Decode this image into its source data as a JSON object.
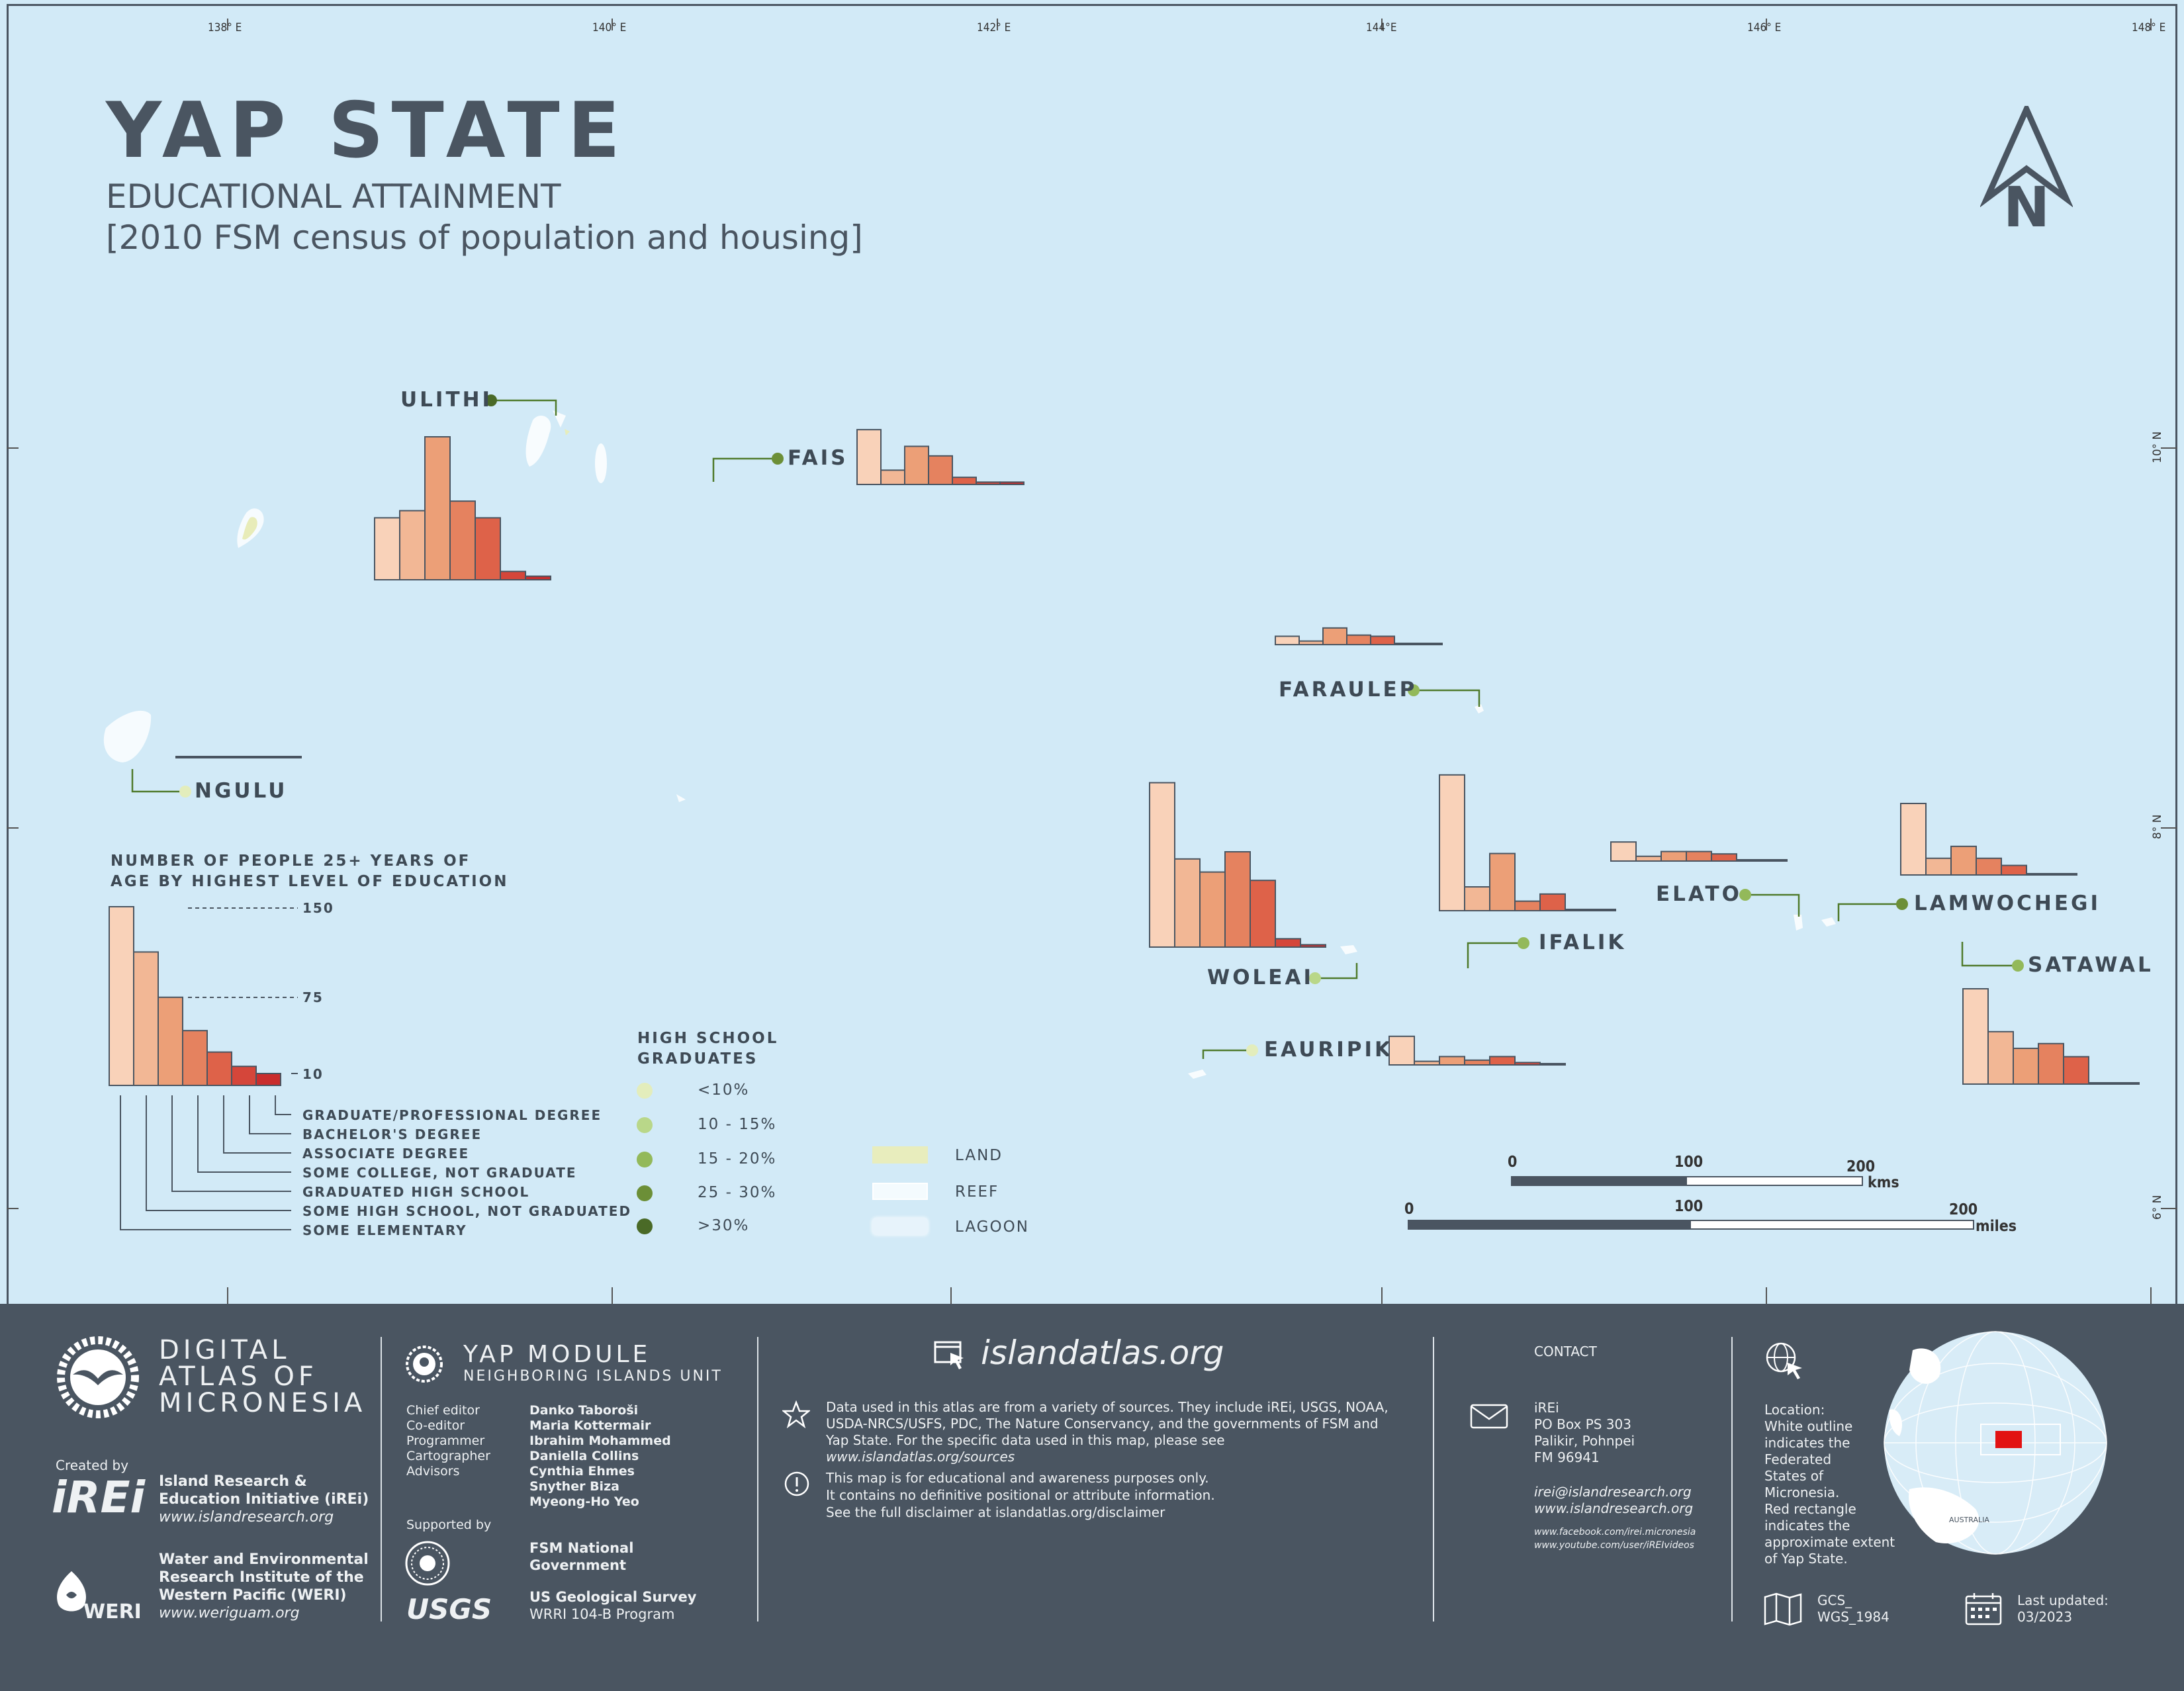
{
  "title": "YAP STATE",
  "subtitle": "EDUCATIONAL ATTAINMENT",
  "subtitle2": "[2010 FSM census of population and housing]",
  "graticule": {
    "lon_labels": [
      "138° E",
      "140° E",
      "142° E",
      "144°E",
      "146° E",
      "148° E"
    ],
    "lat_labels": [
      "10° N",
      "8° N",
      "6° N"
    ]
  },
  "north_label": "N",
  "islands": {
    "ulithi": "ULITHI",
    "fais": "FAIS",
    "faraulep": "FARAULEP",
    "ngulu": "NGULU",
    "woleai": "WOLEAI",
    "ifalik": "IFALIK",
    "elato": "ELATO",
    "lamwochegi": "LAMWOCHEGI",
    "satawal": "SATAWAL",
    "eauripik": "EAURIPIK"
  },
  "chart_data": {
    "type": "bar",
    "categories": [
      "Some elementary",
      "Some high school, not graduated",
      "Graduated high school",
      "Some college, not graduate",
      "Associate degree",
      "Bachelor's degree",
      "Graduate/professional degree"
    ],
    "series": [
      {
        "name": "ULITHI",
        "values": [
          52,
          58,
          120,
          66,
          52,
          7,
          3
        ]
      },
      {
        "name": "FAIS",
        "values": [
          46,
          12,
          32,
          24,
          6,
          2,
          2
        ]
      },
      {
        "name": "FARAULEP",
        "values": [
          7,
          3,
          14,
          8,
          7,
          1,
          1
        ]
      },
      {
        "name": "NGULU",
        "values": [
          1,
          1,
          1,
          1,
          1,
          1,
          1
        ]
      },
      {
        "name": "WOLEAI",
        "values": [
          138,
          74,
          63,
          80,
          56,
          7,
          2
        ]
      },
      {
        "name": "IFALIK",
        "values": [
          114,
          20,
          48,
          8,
          14,
          1,
          1
        ]
      },
      {
        "name": "ELATO",
        "values": [
          16,
          4,
          8,
          8,
          6,
          1,
          1
        ]
      },
      {
        "name": "LAMWOCHEGI",
        "values": [
          60,
          14,
          24,
          14,
          8,
          1,
          1
        ]
      },
      {
        "name": "SATAWAL",
        "values": [
          80,
          44,
          30,
          34,
          23,
          1,
          1
        ]
      },
      {
        "name": "EAURIPIK",
        "values": [
          24,
          3,
          7,
          4,
          7,
          2,
          1
        ]
      }
    ],
    "legend_example_values": [
      150,
      112,
      74,
      46,
      28,
      16,
      10
    ],
    "scale_ticks": [
      150,
      75,
      10
    ]
  },
  "bar_colors": [
    "#f9d2b9",
    "#f2b795",
    "#ec9f77",
    "#e5825f",
    "#de6249",
    "#d5463a",
    "#c92d2d"
  ],
  "bars_legend": {
    "heading_line1": "NUMBER OF PEOPLE 25+ YEARS OF",
    "heading_line2": "AGE BY HIGHEST LEVEL OF EDUCATION",
    "tick_150": "150",
    "tick_75": "75",
    "tick_10": "10",
    "labels": [
      "GRADUATE/PROFESSIONAL DEGREE",
      "BACHELOR'S DEGREE",
      "ASSOCIATE DEGREE",
      "SOME COLLEGE, NOT GRADUATE",
      "GRADUATED HIGH SCHOOL",
      "SOME HIGH SCHOOL, NOT GRADUATED",
      "SOME ELEMENTARY"
    ]
  },
  "hs_legend": {
    "heading_line1": "HIGH SCHOOL",
    "heading_line2": "GRADUATES",
    "classes": [
      "<10%",
      "10 - 15%",
      "15 - 20%",
      "25 - 30%",
      ">30%"
    ],
    "colors": [
      "#e3edbc",
      "#b9d789",
      "#93b95a",
      "#6c8f37",
      "#4a6a27"
    ]
  },
  "land_legend": {
    "land": "LAND",
    "reef": "REEF",
    "lagoon": "LAGOON"
  },
  "scale_bar": {
    "km_ticks": [
      "0",
      "100",
      "200"
    ],
    "km_unit": "kms",
    "mi_ticks": [
      "0",
      "100",
      "200"
    ],
    "mi_unit": "miles"
  },
  "footer": {
    "brand_line1": "DIGITAL",
    "brand_line2": "ATLAS OF",
    "brand_line3": "MICRONESIA",
    "created_by": "Created by",
    "irei_logo": "iREi",
    "irei_name1": "Island Research &",
    "irei_name2": "Education Initiative (iREi)",
    "irei_url": "www.islandresearch.org",
    "weri_logo": "WERI",
    "weri_name1": "Water and Environmental",
    "weri_name2": "Research Institute of the",
    "weri_name3": "Western Pacific (WERI)",
    "weri_url": "www.weriguam.org",
    "module_title": "YAP MODULE",
    "module_sub": "NEIGHBORING ISLANDS UNIT",
    "credit_roles": [
      "Chief editor",
      "Co-editor",
      "Programmer",
      "Cartographer",
      "Advisors"
    ],
    "credit_names": [
      "Danko Taboroši",
      "Maria Kottermair",
      "Ibrahim Mohammed",
      "Daniella Collins",
      "Cynthia Ehmes",
      "Snyther Biza",
      "Myeong-Ho Yeo"
    ],
    "supported_by": "Supported by",
    "fsm_name1": "FSM National",
    "fsm_name2": "Government",
    "usgs_logo": "USGS",
    "usgs_name": "US Geological Survey",
    "usgs_program": "WRRI 104-B Program",
    "site": "islandatlas.org",
    "data_note_lines": [
      "Data used in this atlas are from a variety of sources. They include iREi, USGS, NOAA,",
      "USDA-NRCS/USFS, PDC, The Nature Conservancy, and the governments of FSM and",
      "Yap State. For the specific data used in this map, please see",
      "www.islandatlas.org/sources"
    ],
    "disclaimer_lines": [
      "This map is for educational and awareness purposes only.",
      "It contains no definitive positional or attribute information.",
      "See the full disclaimer at islandatlas.org/disclaimer"
    ],
    "contact_title": "CONTACT",
    "contact_lines": [
      "iREi",
      "PO Box PS 303",
      "Palikir, Pohnpei",
      "FM 96941"
    ],
    "contact_email": "irei@islandresearch.org",
    "contact_web": "www.islandresearch.org",
    "contact_fb": "www.facebook.com/irei.micronesia",
    "contact_yt": "www.youtube.com/user/iREIvideos",
    "location_lines": [
      "Location:",
      "White outline",
      "indicates the",
      "Federated",
      "States of",
      "Micronesia.",
      "Red rectangle",
      "indicates the",
      "approximate extent",
      "of Yap State."
    ],
    "projection_line1": "GCS_",
    "projection_line2": "WGS_1984",
    "updated_line1": "Last updated:",
    "updated_line2": "03/2023",
    "globe_label": "AUSTRALIA"
  }
}
